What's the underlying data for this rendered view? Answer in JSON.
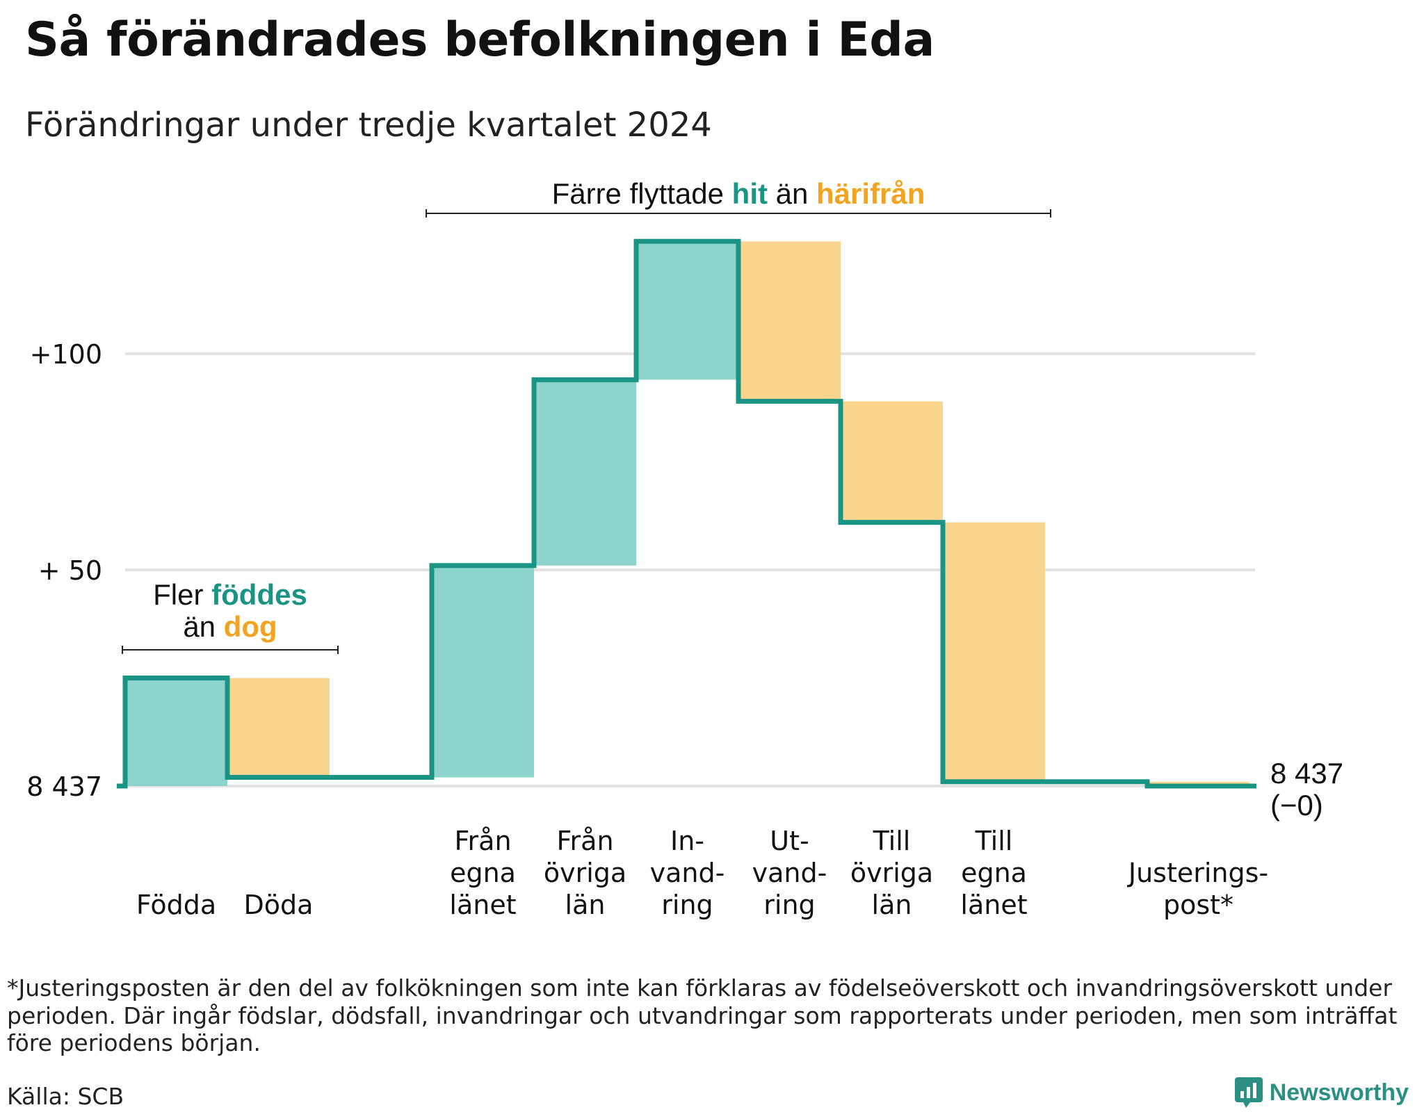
{
  "title": "Så förändrades befolkningen i Eda",
  "subtitle": "Förändringar under tredje kvartalet 2024",
  "footnote": "*Justeringsposten är den del av folkökningen som inte kan förklaras av födelseöverskott och invandringsöverskott under perioden. Där ingår födslar, dödsfall, invandringar och utvandringar som rapporterats under perioden, men som inträffat före periodens början.",
  "source": "Källa: SCB",
  "brand": "Newsworthy",
  "colors": {
    "inflow": "#8dd4cc",
    "outflow": "#fad58e",
    "line": "#1a9485",
    "accent_in": "#1a9485",
    "accent_out": "#f2a31f",
    "grid": "#e2e2e2"
  },
  "annotations": {
    "birth": {
      "prefix": "Fler",
      "in": "föddes",
      "middle": "än",
      "out": "dog"
    },
    "migration": {
      "prefix": "Färre flyttade",
      "in": "hit",
      "middle": "än",
      "out": "härifrån"
    }
  },
  "chart_data": {
    "type": "waterfall",
    "baseline": 8437,
    "end_label": [
      "8 437",
      "(−0)"
    ],
    "yticks": [
      {
        "value": 0,
        "label": "8 437"
      },
      {
        "value": 50,
        "label": "+ 50"
      },
      {
        "value": 100,
        "label": "+100"
      }
    ],
    "ylim": [
      0,
      130
    ],
    "grid": true,
    "steps": [
      {
        "label": [
          "Födda"
        ],
        "change": 25,
        "kind": "in"
      },
      {
        "label": [
          "Döda"
        ],
        "change": -23,
        "kind": "out"
      },
      {
        "label": [
          ""
        ],
        "change": 0,
        "kind": "none"
      },
      {
        "label": [
          "Från",
          "egna",
          "länet"
        ],
        "change": 49,
        "kind": "in"
      },
      {
        "label": [
          "Från",
          "övriga",
          "län"
        ],
        "change": 43,
        "kind": "in"
      },
      {
        "label": [
          "In-",
          "vand-",
          "ring"
        ],
        "change": 32,
        "kind": "in"
      },
      {
        "label": [
          "Ut-",
          "vand-",
          "ring"
        ],
        "change": -37,
        "kind": "out"
      },
      {
        "label": [
          "Till",
          "övriga",
          "län"
        ],
        "change": -28,
        "kind": "out"
      },
      {
        "label": [
          "Till",
          "egna",
          "länet"
        ],
        "change": -60,
        "kind": "out"
      },
      {
        "label": [
          ""
        ],
        "change": 0,
        "kind": "none"
      },
      {
        "label": [
          "Justerings-",
          "post*"
        ],
        "change": -1,
        "kind": "out"
      }
    ]
  }
}
